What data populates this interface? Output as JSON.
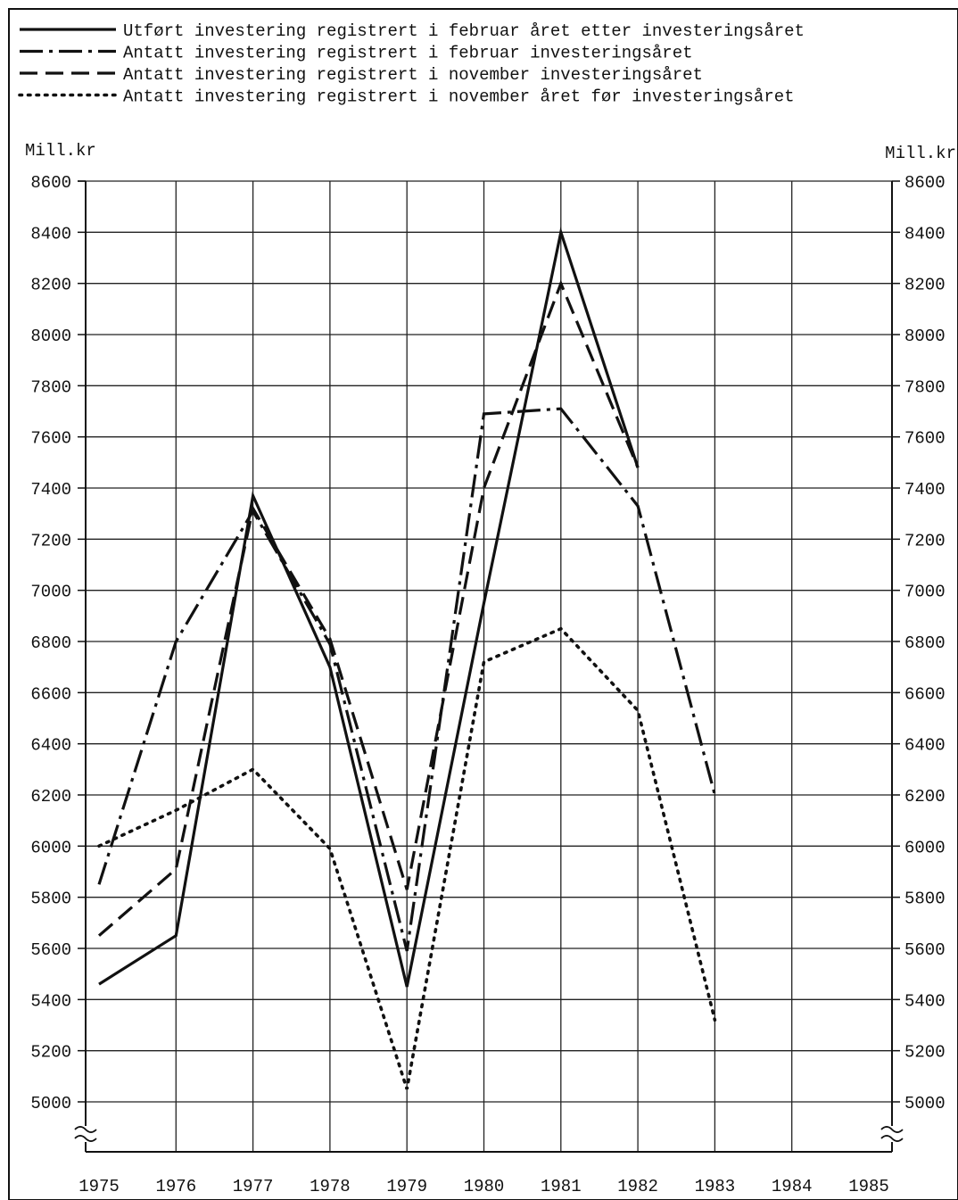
{
  "chart_data": {
    "type": "line",
    "title": "",
    "unit_left": "Mill.kr",
    "unit_right": "Mill.kr",
    "xlim": [
      1975,
      1985
    ],
    "ylim": [
      4850,
      8600
    ],
    "y_ticks": [
      "5000",
      "5200",
      "5400",
      "5600",
      "5800",
      "6000",
      "6200",
      "6400",
      "6600",
      "6800",
      "7000",
      "7200",
      "7400",
      "7600",
      "7800",
      "8000",
      "8200",
      "8400",
      "8600"
    ],
    "x_ticks": [
      "1975",
      "1976",
      "1977",
      "1978",
      "1979",
      "1980",
      "1981",
      "1982",
      "1983",
      "1984",
      "1985"
    ],
    "legend_placement": "top",
    "series": [
      {
        "name": "Utført investering registrert i februar året etter investeringsåret",
        "style": "solid",
        "x": [
          1975,
          1976,
          1977,
          1978,
          1979,
          1980,
          1981,
          1982
        ],
        "values": [
          5460,
          5650,
          7370,
          6700,
          5450,
          6950,
          8400,
          7480
        ]
      },
      {
        "name": "Antatt investering registrert i februar investeringsåret",
        "style": "dashdot",
        "x": [
          1975,
          1976,
          1977,
          1978,
          1979,
          1980,
          1981,
          1982,
          1983
        ],
        "values": [
          5850,
          6800,
          7310,
          6790,
          5590,
          7690,
          7710,
          7330,
          6200
        ]
      },
      {
        "name": "Antatt investering registrert i november investeringsåret",
        "style": "dash",
        "x": [
          1975,
          1976,
          1977,
          1978,
          1979,
          1980,
          1981,
          1982
        ],
        "values": [
          5650,
          5910,
          7320,
          6810,
          5830,
          7400,
          8200,
          7480
        ]
      },
      {
        "name": "Antatt investering registrert i november året før investeringsåret",
        "style": "dot",
        "x": [
          1975,
          1976,
          1977,
          1978,
          1979,
          1980,
          1981,
          1982,
          1983
        ],
        "values": [
          6000,
          6140,
          6300,
          5990,
          5050,
          6720,
          6850,
          6530,
          5320
        ]
      }
    ]
  }
}
